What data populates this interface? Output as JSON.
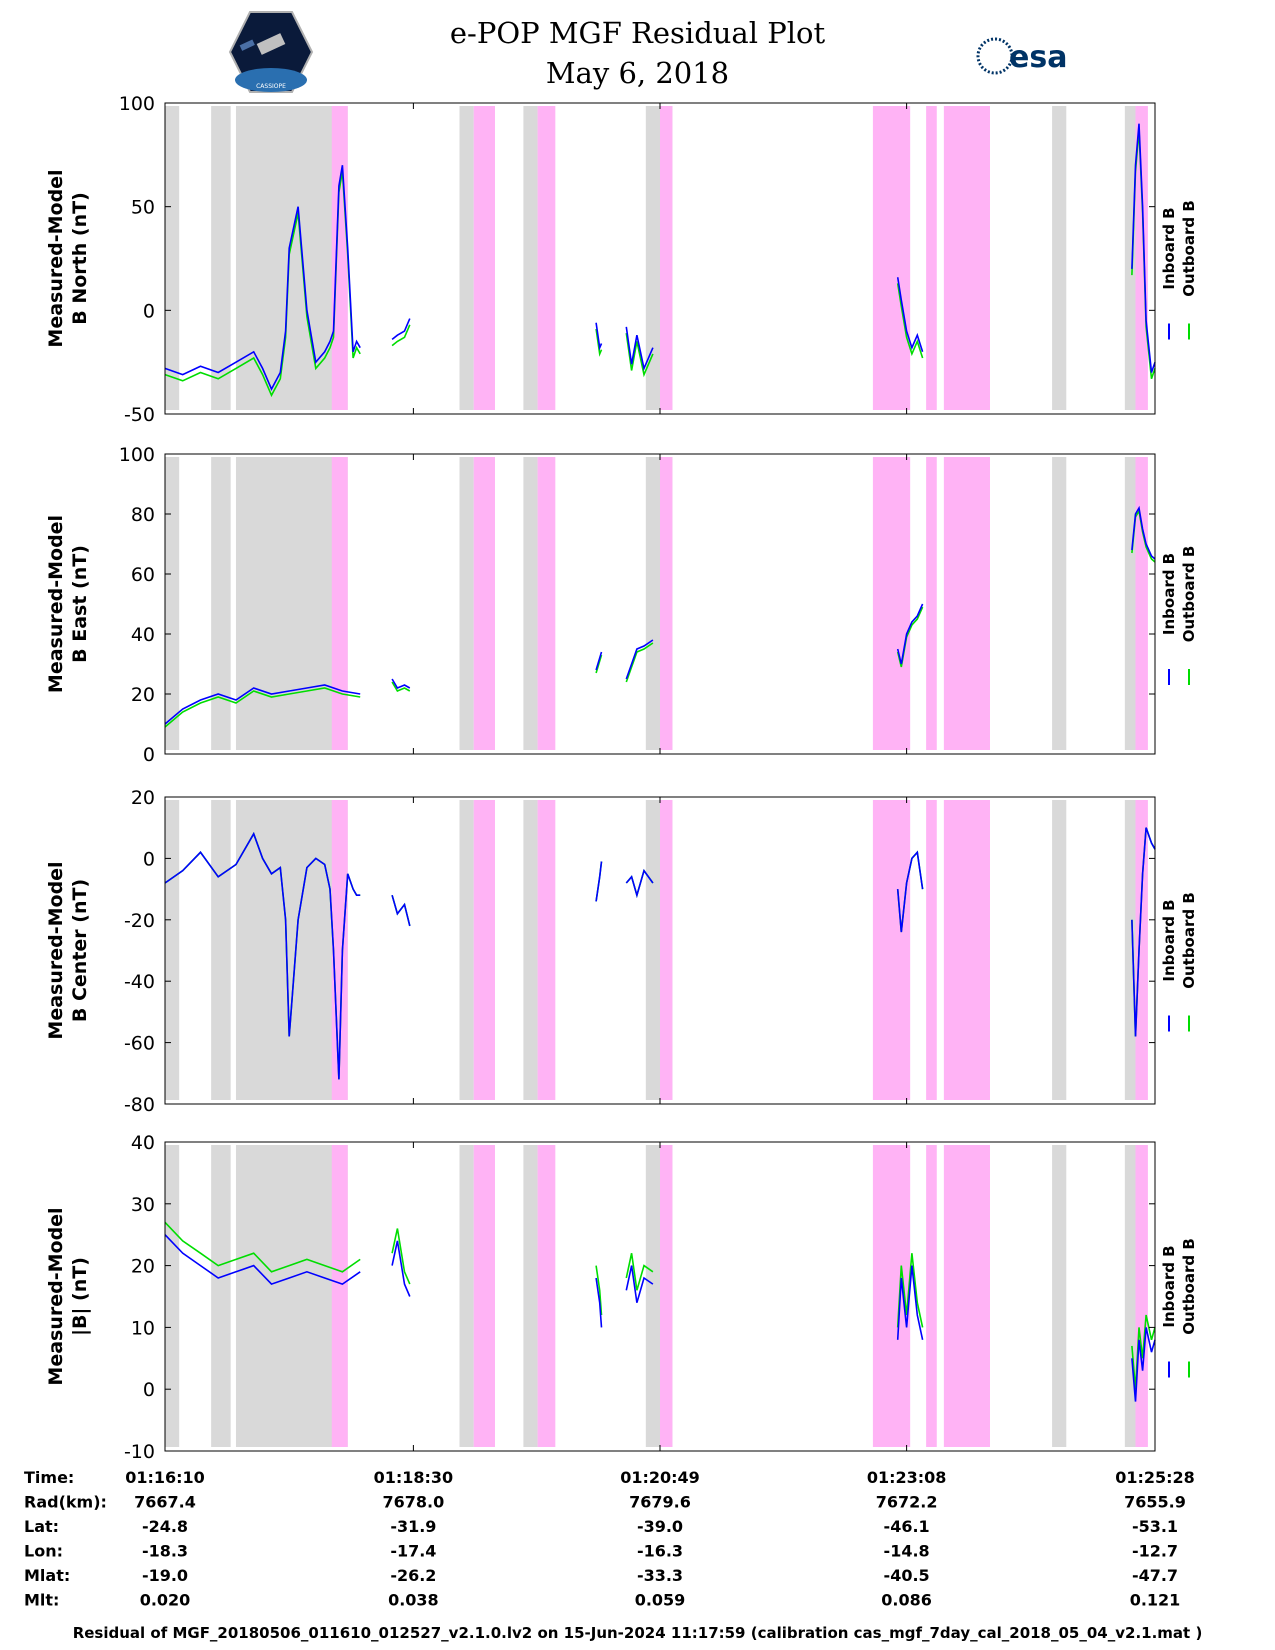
{
  "title": "e-POP MGF Residual Plot",
  "subtitle": "May 6, 2018",
  "logos": {
    "mission_icon": "satellite-hexagon-logo",
    "mission_text": "CASSIOPE",
    "agency_icon": "esa-logo",
    "agency_text": "esa"
  },
  "colors": {
    "inboard": "#0000ff",
    "outboard": "#00dd00",
    "gray_band": "#d9d9d9",
    "pink_band": "#ffb3f5",
    "axis": "#000000"
  },
  "chart_data": {
    "type": "line",
    "x_unit": "seconds since 01:16:10",
    "x_range": [
      0,
      558
    ],
    "legend": {
      "inboard": "Inboard B",
      "outboard": "Outboard B",
      "placement": "right"
    },
    "gray_bands_s": [
      [
        0,
        8
      ],
      [
        26,
        37
      ],
      [
        40,
        103
      ],
      [
        166,
        174
      ],
      [
        202,
        210
      ],
      [
        271,
        286
      ],
      [
        500,
        508
      ],
      [
        541,
        547
      ]
    ],
    "pink_bands_s": [
      [
        94,
        103
      ],
      [
        174,
        186
      ],
      [
        210,
        220
      ],
      [
        279,
        286
      ],
      [
        399,
        420
      ],
      [
        429,
        435
      ],
      [
        439,
        465
      ],
      [
        547,
        554
      ]
    ],
    "panels": [
      {
        "id": "north",
        "ylabel_line1": "Measured-Model",
        "ylabel_line2": "B North (nT)",
        "ylim": [
          -50,
          100
        ],
        "yticks": [
          -50,
          0,
          50,
          100
        ],
        "inboard_segments": [
          {
            "t": [
              0,
              10,
              20,
              30,
              40,
              50,
              55,
              60,
              65,
              68,
              70,
              75,
              80,
              85,
              90,
              93,
              95,
              98,
              100,
              103,
              106,
              108,
              110
            ],
            "v": [
              -28,
              -31,
              -27,
              -30,
              -25,
              -20,
              -28,
              -38,
              -30,
              -10,
              30,
              50,
              0,
              -25,
              -20,
              -15,
              -10,
              60,
              70,
              30,
              -20,
              -15,
              -18
            ]
          },
          {
            "t": [
              128,
              131,
              135,
              138
            ],
            "v": [
              -14,
              -12,
              -10,
              -4
            ]
          },
          {
            "t": [
              243,
              245,
              246
            ],
            "v": [
              -6,
              -18,
              -16
            ]
          },
          {
            "t": [
              260,
              263,
              266,
              270,
              275
            ],
            "v": [
              -8,
              -26,
              -12,
              -28,
              -18
            ]
          },
          {
            "t": [
              413,
              415,
              418,
              421,
              424,
              427
            ],
            "v": [
              16,
              5,
              -10,
              -18,
              -12,
              -20
            ]
          },
          {
            "t": [
              545,
              547,
              549,
              551,
              553,
              556,
              558
            ],
            "v": [
              20,
              70,
              90,
              50,
              -5,
              -30,
              -25
            ]
          }
        ],
        "outboard_offset_nT": -3
      },
      {
        "id": "east",
        "ylabel_line1": "Measured-Model",
        "ylabel_line2": "B East (nT)",
        "ylim": [
          0,
          100
        ],
        "yticks": [
          0,
          20,
          40,
          60,
          80,
          100
        ],
        "inboard_segments": [
          {
            "t": [
              0,
              10,
              20,
              30,
              40,
              50,
              60,
              70,
              80,
              90,
              100,
              110
            ],
            "v": [
              10,
              15,
              18,
              20,
              18,
              22,
              20,
              21,
              22,
              23,
              21,
              20
            ]
          },
          {
            "t": [
              128,
              131,
              135,
              138
            ],
            "v": [
              25,
              22,
              23,
              22
            ]
          },
          {
            "t": [
              243,
              245,
              246
            ],
            "v": [
              28,
              32,
              34
            ]
          },
          {
            "t": [
              260,
              263,
              266,
              270,
              275
            ],
            "v": [
              25,
              30,
              35,
              36,
              38
            ]
          },
          {
            "t": [
              413,
              415,
              418,
              421,
              424,
              427
            ],
            "v": [
              35,
              30,
              40,
              44,
              46,
              50
            ]
          },
          {
            "t": [
              545,
              547,
              549,
              551,
              553,
              556,
              558
            ],
            "v": [
              68,
              80,
              82,
              75,
              70,
              66,
              65
            ]
          }
        ],
        "outboard_offset_nT": -1
      },
      {
        "id": "center",
        "ylabel_line1": "Measured-Model",
        "ylabel_line2": "B Center (nT)",
        "ylim": [
          -80,
          20
        ],
        "yticks": [
          -80,
          -60,
          -40,
          -20,
          0,
          20
        ],
        "inboard_segments": [
          {
            "t": [
              0,
              10,
              20,
              30,
              40,
              50,
              55,
              60,
              65,
              68,
              70,
              75,
              80,
              85,
              90,
              93,
              95,
              98,
              100,
              103,
              106,
              108,
              110
            ],
            "v": [
              -8,
              -4,
              2,
              -6,
              -2,
              8,
              0,
              -5,
              -3,
              -20,
              -58,
              -20,
              -3,
              0,
              -2,
              -10,
              -30,
              -72,
              -30,
              -5,
              -10,
              -12,
              -12
            ]
          },
          {
            "t": [
              128,
              131,
              135,
              138
            ],
            "v": [
              -12,
              -18,
              -15,
              -22
            ]
          },
          {
            "t": [
              243,
              245,
              246
            ],
            "v": [
              -14,
              -6,
              -1
            ]
          },
          {
            "t": [
              260,
              263,
              266,
              270,
              275
            ],
            "v": [
              -8,
              -6,
              -12,
              -4,
              -8
            ]
          },
          {
            "t": [
              413,
              415,
              418,
              421,
              424,
              427
            ],
            "v": [
              -10,
              -24,
              -8,
              0,
              2,
              -10
            ]
          },
          {
            "t": [
              545,
              547,
              549,
              551,
              553,
              556,
              558
            ],
            "v": [
              -20,
              -58,
              -30,
              -5,
              10,
              5,
              3
            ]
          }
        ],
        "outboard_offset_nT": 0
      },
      {
        "id": "total",
        "ylabel_line1": "Measured-Model",
        "ylabel_line2": "|B| (nT)",
        "ylim": [
          -10,
          40
        ],
        "yticks": [
          -10,
          0,
          10,
          20,
          30,
          40
        ],
        "inboard_segments": [
          {
            "t": [
              0,
              10,
              20,
              30,
              40,
              50,
              60,
              70,
              80,
              90,
              100,
              110
            ],
            "v": [
              25,
              22,
              20,
              18,
              19,
              20,
              17,
              18,
              19,
              18,
              17,
              19
            ]
          },
          {
            "t": [
              128,
              131,
              135,
              138
            ],
            "v": [
              20,
              24,
              17,
              15
            ]
          },
          {
            "t": [
              243,
              245,
              246
            ],
            "v": [
              18,
              14,
              10
            ]
          },
          {
            "t": [
              260,
              263,
              266,
              270,
              275
            ],
            "v": [
              16,
              20,
              14,
              18,
              17
            ]
          },
          {
            "t": [
              413,
              415,
              418,
              421,
              424,
              427
            ],
            "v": [
              8,
              18,
              10,
              20,
              12,
              8
            ]
          },
          {
            "t": [
              545,
              547,
              549,
              551,
              553,
              556,
              558
            ],
            "v": [
              5,
              -2,
              8,
              3,
              10,
              6,
              8
            ]
          }
        ],
        "outboard_offset_nT": 2
      }
    ],
    "ephemeris": {
      "row_labels": [
        "Time:",
        "Rad(km):",
        "Lat:",
        "Lon:",
        "Mlat:",
        "Mlt:"
      ],
      "columns": [
        {
          "t_s": 0,
          "values": [
            "01:16:10",
            "7667.4",
            "-24.8",
            "-18.3",
            "-19.0",
            "0.020"
          ]
        },
        {
          "t_s": 140,
          "values": [
            "01:18:30",
            "7678.0",
            "-31.9",
            "-17.4",
            "-26.2",
            "0.038"
          ]
        },
        {
          "t_s": 279,
          "values": [
            "01:20:49",
            "7679.6",
            "-39.0",
            "-16.3",
            "-33.3",
            "0.059"
          ]
        },
        {
          "t_s": 418,
          "values": [
            "01:23:08",
            "7672.2",
            "-46.1",
            "-14.8",
            "-40.5",
            "0.086"
          ]
        },
        {
          "t_s": 558,
          "values": [
            "01:25:28",
            "7655.9",
            "-53.1",
            "-12.7",
            "-47.7",
            "0.121"
          ]
        }
      ]
    }
  },
  "footer": "Residual of MGF_20180506_011610_012527_v2.1.0.lv2 on 15-Jun-2024 11:17:59 (calibration cas_mgf_7day_cal_2018_05_04_v2.1.mat )"
}
